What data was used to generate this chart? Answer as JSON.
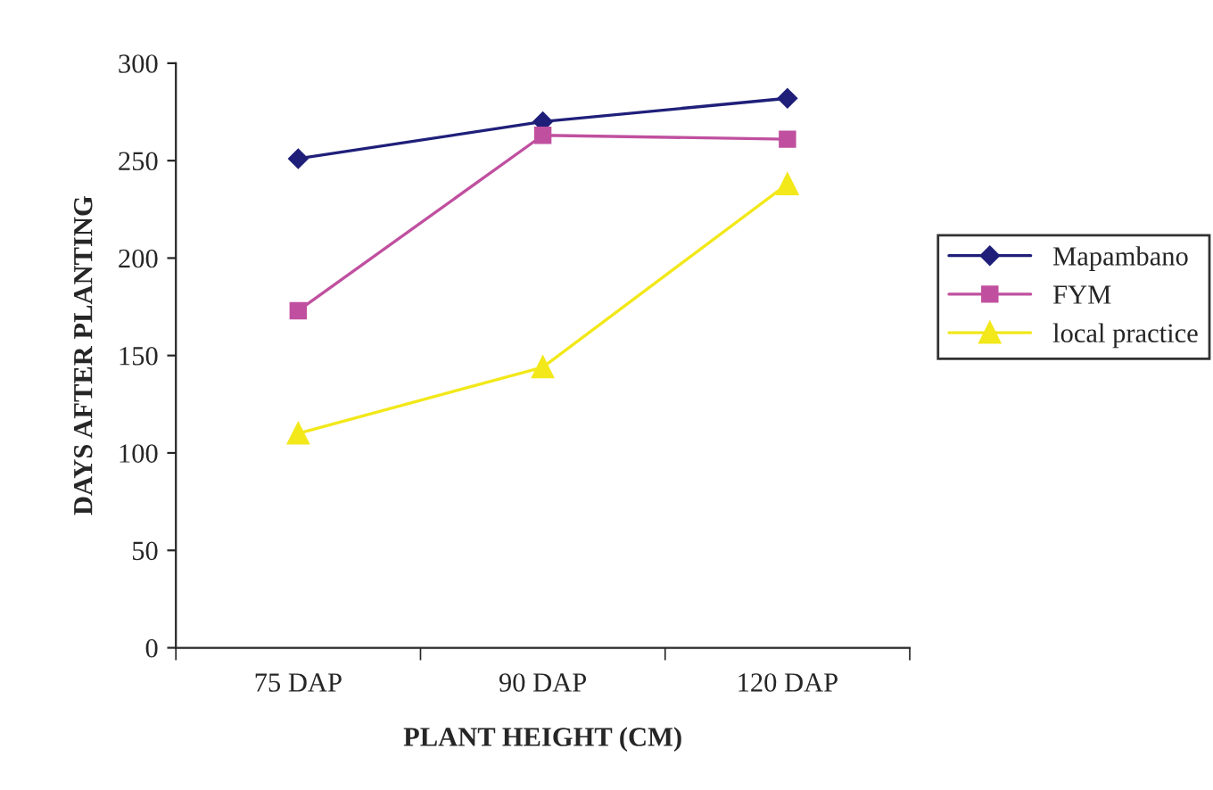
{
  "chart_data": {
    "type": "line",
    "xlabel": "PLANT HEIGHT (CM)",
    "ylabel": "DAYS AFTER PLANTING",
    "categories": [
      "75 DAP",
      "90 DAP",
      "120 DAP"
    ],
    "series": [
      {
        "name": "Mapambano",
        "color": "#1f1f7a",
        "marker": "diamond",
        "values": [
          251,
          270,
          282
        ]
      },
      {
        "name": "FYM",
        "color": "#c0509f",
        "marker": "square",
        "values": [
          173,
          263,
          261
        ]
      },
      {
        "name": "local practice",
        "color": "#f2e81a",
        "marker": "triangle",
        "values": [
          110,
          144,
          238
        ]
      }
    ],
    "ylim": [
      0,
      300
    ],
    "yticks": [
      0,
      50,
      100,
      150,
      200,
      250,
      300
    ],
    "grid": false,
    "legend": "right",
    "line_style": "solid"
  }
}
